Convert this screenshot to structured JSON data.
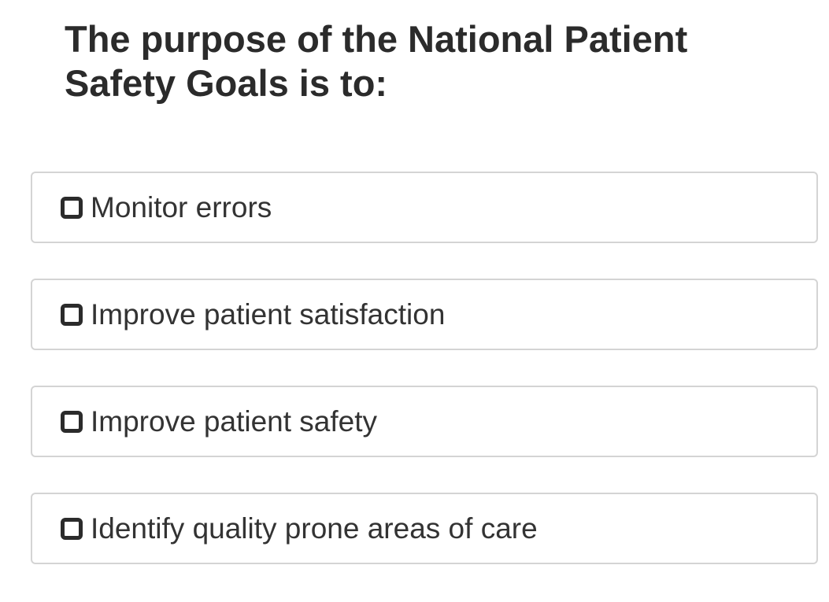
{
  "question": "The purpose of the National Patient Safety Goals is to:",
  "options": [
    "Monitor errors",
    "Improve patient satisfaction",
    "Improve patient safety",
    "Identify quality prone areas of care"
  ]
}
